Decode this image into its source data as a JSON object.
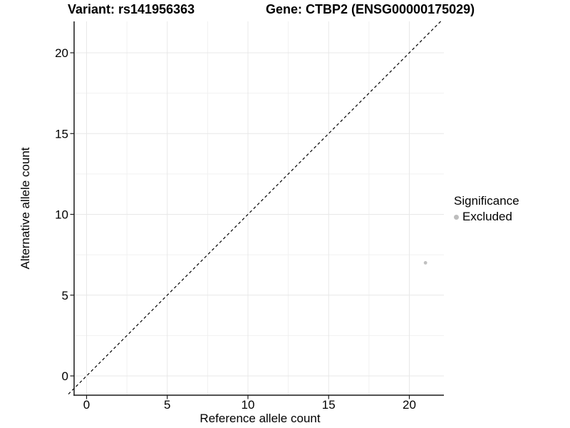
{
  "titles": {
    "variant": "Variant: rs141956363",
    "gene": "Gene: CTBP2 (ENSG00000175029)"
  },
  "axes": {
    "x_label": "Reference allele count",
    "y_label": "Alternative allele count"
  },
  "legend": {
    "title": "Significance",
    "items": [
      {
        "label": "Excluded",
        "color": "#bdbdbd"
      }
    ]
  },
  "colors": {
    "background": "#ffffff",
    "axis_line": "#1a1a1a",
    "tick": "#1a1a1a",
    "grid_major": "#e8e8e8",
    "grid_minor": "#f1f1f1",
    "reference_line": "#000000",
    "point": "#c0c0c0",
    "text": "#000000"
  },
  "chart_data": {
    "type": "scatter",
    "title": "Variant: rs141956363   Gene: CTBP2 (ENSG00000175029)",
    "xlabel": "Reference allele count",
    "ylabel": "Alternative allele count",
    "xlim": [
      -1.1,
      22.1
    ],
    "ylim": [
      -1.2,
      21.9
    ],
    "x_ticks": [
      0,
      5,
      10,
      15,
      20
    ],
    "y_ticks": [
      0,
      5,
      10,
      15,
      20
    ],
    "x_minor_ticks": [
      2.5,
      7.5,
      12.5,
      17.5
    ],
    "y_minor_ticks": [
      2.5,
      7.5,
      12.5,
      17.5
    ],
    "grid": "major and minor gridlines, legend right",
    "series": [
      {
        "name": "Excluded",
        "color": "#c0c0c0",
        "points": [
          {
            "x": 21,
            "y": 7
          }
        ]
      }
    ],
    "reference_line": {
      "kind": "identity y=x",
      "style": "dashed",
      "color": "#000000"
    }
  }
}
